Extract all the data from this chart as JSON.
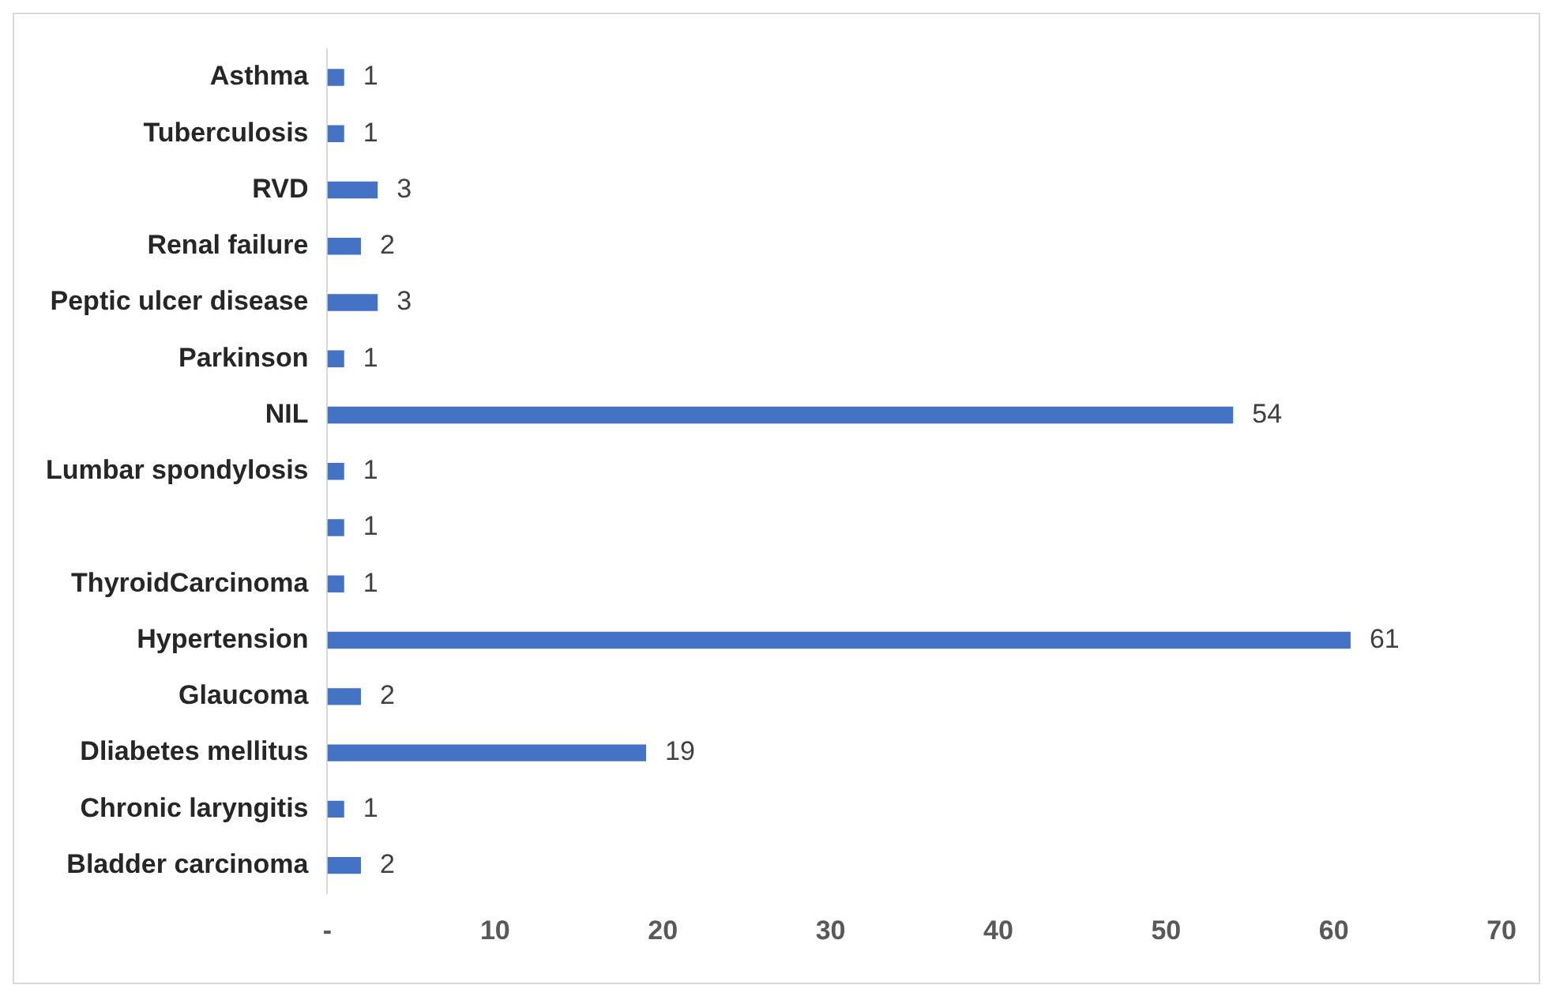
{
  "chart_data": {
    "type": "bar",
    "orientation": "horizontal",
    "categories": [
      "Asthma",
      "Tuberculosis",
      "RVD",
      "Renal failure",
      "Peptic ulcer disease",
      "Parkinson",
      "NIL",
      "Lumbar spondylosis",
      null,
      "ThyroidCarcinoma",
      "Hypertension",
      "Glaucoma",
      "Dliabetes mellitus",
      "Chronic laryngitis",
      "Bladder carcinoma"
    ],
    "values": [
      1,
      1,
      3,
      2,
      3,
      1,
      54,
      1,
      1,
      1,
      61,
      2,
      19,
      1,
      2
    ],
    "color": "#4472c4",
    "xlim": [
      0,
      70
    ],
    "xticks": [
      {
        "value": 0,
        "label": "-"
      },
      10,
      20,
      30,
      40,
      50,
      60,
      70
    ],
    "grid": false,
    "legend": false,
    "data_labels": true
  }
}
